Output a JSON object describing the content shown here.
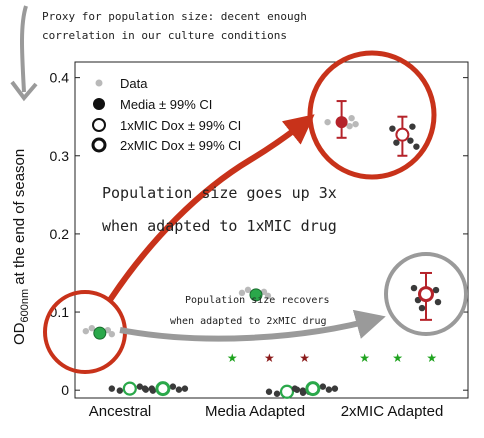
{
  "annotations": {
    "top_note_line1": "Proxy for population size: decent enough",
    "top_note_line2": "correlation in our culture conditions",
    "big_note_line1": "Population size goes up 3x",
    "big_note_line2": "when adapted to 1xMIC drug",
    "small_note_line1": "Population size recovers",
    "small_note_line2": "when adapted to 2xMIC drug"
  },
  "colors": {
    "green": "#2aa84a",
    "dark_red": "#b5232a",
    "arrow_red": "#c8321a",
    "grey_points": "#b9b9b9",
    "dark_points": "#3a3a3a",
    "grey_circle": "#9a9a9a",
    "green_star": "#1fa31f",
    "red_star": "#8b1a1a"
  },
  "chart_data": {
    "type": "scatter",
    "ylabel_main": "OD",
    "ylabel_sub": "600nm",
    "ylabel_rest": " at the end of season",
    "ylim": [
      -0.01,
      0.42
    ],
    "yticks": [
      "0",
      "0.1",
      "0.2",
      "0.3",
      "0.4"
    ],
    "ytick_values": [
      0,
      0.1,
      0.2,
      0.3,
      0.4
    ],
    "categories": [
      "Ancestral",
      "Media Adapted",
      "2xMIC Adapted"
    ],
    "legend": [
      {
        "label": "Data",
        "marker": "grey-dot"
      },
      {
        "label": "Media ± 99% CI",
        "marker": "filled"
      },
      {
        "label": "1xMIC Dox ± 99% CI",
        "marker": "open-thin"
      },
      {
        "label": "2xMIC Dox ± 99% CI",
        "marker": "open-thick"
      }
    ],
    "groups": [
      {
        "category": "Ancestral",
        "condition": "Media",
        "mean": 0.073,
        "x": 0.24
      },
      {
        "category": "Ancestral",
        "condition": "1xMIC Dox",
        "mean": 0.002,
        "x": 0.53
      },
      {
        "category": "Ancestral",
        "condition": "2xMIC Dox",
        "mean": 0.002,
        "x": 0.85
      },
      {
        "category": "Media Adapted",
        "condition": "Media",
        "mean": 0.122,
        "x": 1.75
      },
      {
        "category": "Media Adapted",
        "condition": "1xMIC Dox",
        "mean": -0.002,
        "x": 2.05
      },
      {
        "category": "Media Adapted",
        "condition": "2xMIC Dox",
        "mean": 0.002,
        "x": 2.3
      },
      {
        "category": "Zoom (1xMIC Adapted)",
        "condition": "Media",
        "mean": 0.343,
        "ci": [
          0.323,
          0.37
        ],
        "x": 0.42
      },
      {
        "category": "Zoom (1xMIC Adapted)",
        "condition": "1xMIC Dox",
        "mean": 0.327,
        "ci": [
          0.3,
          0.35
        ],
        "x": 0.58
      },
      {
        "category": "Zoom (2xMIC Adapted)",
        "condition": "2xMIC Dox",
        "mean": 0.123,
        "ci": [
          0.09,
          0.15
        ],
        "x": 0.5
      }
    ],
    "stars": [
      {
        "x": 1.52,
        "color": "green"
      },
      {
        "x": 1.88,
        "color": "red"
      },
      {
        "x": 2.22,
        "color": "red"
      },
      {
        "x": 2.8,
        "color": "green"
      },
      {
        "x": 3.12,
        "color": "green"
      },
      {
        "x": 3.45,
        "color": "green"
      }
    ]
  }
}
